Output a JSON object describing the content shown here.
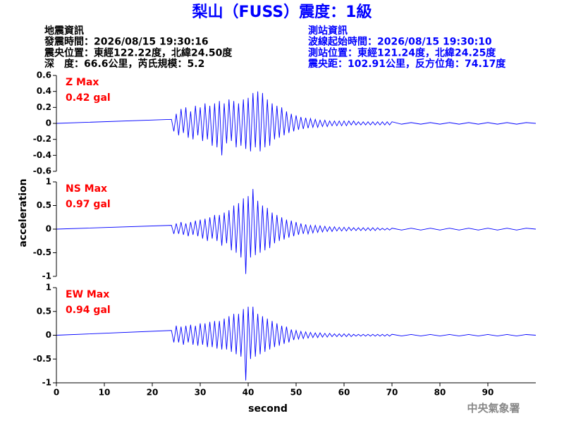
{
  "header": {
    "title": "梨山（FUSS）震度：1級",
    "left": [
      "地震資訊",
      "發震時間：2026/08/15 19:30:16",
      "震央位置：東經122.22度，北緯24.50度",
      "深　度：66.6公里，芮氏規模：5.2"
    ],
    "right": [
      "測站資訊",
      "波線起始時間：2026/08/15 19:30:10",
      "測站位置：東經121.24度，北緯24.25度",
      "震央距：102.91公里，反方位角：74.17度"
    ]
  },
  "ylabel": "acceleration",
  "credit": "中央氣象署",
  "chart_data": [
    {
      "type": "line",
      "annotations": [
        "Z Max",
        "0.42 gal"
      ],
      "color": "#0000ff",
      "xlim": [
        0,
        100
      ],
      "ylim": [
        -0.6,
        0.6
      ],
      "yticks": [
        -0.6,
        -0.4,
        -0.2,
        0,
        0.2,
        0.4,
        0.6
      ],
      "x": [
        0,
        24,
        24.5,
        25,
        25.5,
        26,
        26.5,
        27,
        27.5,
        28,
        28.5,
        29,
        29.5,
        30,
        30.5,
        31,
        31.5,
        32,
        32.5,
        33,
        33.5,
        34,
        34.5,
        35,
        35.5,
        36,
        36.5,
        37,
        37.5,
        38,
        38.5,
        39,
        39.5,
        40,
        40.5,
        41,
        41.5,
        42,
        42.5,
        43,
        43.5,
        44,
        44.5,
        45,
        45.5,
        46,
        46.5,
        47,
        47.5,
        48,
        48.5,
        49,
        49.5,
        50,
        50.5,
        51,
        51.5,
        52,
        52.5,
        53,
        53.5,
        54,
        54.5,
        55,
        55.5,
        56,
        56.5,
        57,
        57.5,
        58,
        58.5,
        59,
        59.5,
        60,
        60.5,
        61,
        61.5,
        62,
        62.5,
        63,
        63.5,
        64,
        64.5,
        65,
        65.5,
        66,
        66.5,
        67,
        67.5,
        68,
        68.5,
        69,
        69.5,
        70,
        72,
        74,
        76,
        78,
        80,
        82,
        84,
        86,
        88,
        90,
        92,
        94,
        96,
        98,
        100
      ],
      "values": [
        0,
        0.05,
        -0.1,
        0.12,
        -0.15,
        0.18,
        -0.12,
        0.2,
        -0.18,
        0.15,
        -0.2,
        0.22,
        -0.15,
        0.2,
        -0.22,
        0.25,
        -0.2,
        0.22,
        -0.28,
        0.25,
        -0.3,
        0.28,
        -0.4,
        0.25,
        -0.25,
        0.3,
        -0.22,
        0.28,
        -0.3,
        0.25,
        -0.28,
        0.3,
        -0.32,
        0.32,
        -0.35,
        0.38,
        -0.3,
        0.4,
        -0.35,
        0.38,
        -0.3,
        0.3,
        -0.28,
        0.25,
        -0.2,
        0.22,
        -0.18,
        0.2,
        -0.15,
        0.15,
        -0.12,
        0.12,
        -0.1,
        0.1,
        -0.08,
        0.08,
        -0.07,
        0.07,
        -0.06,
        0.06,
        -0.05,
        0.05,
        -0.05,
        0.04,
        -0.04,
        0.04,
        -0.04,
        0.03,
        -0.03,
        0.03,
        -0.03,
        0.03,
        -0.03,
        0.03,
        -0.03,
        0.03,
        -0.02,
        0.03,
        -0.02,
        0.02,
        -0.02,
        0.02,
        -0.02,
        0.02,
        -0.02,
        0.02,
        -0.02,
        0.02,
        -0.02,
        0.02,
        -0.02,
        0.02,
        -0.02,
        0.02,
        -0.01,
        0.01,
        -0.01,
        0.01,
        -0.01,
        0.01,
        -0.01,
        0.01,
        -0.01,
        0.01,
        -0.01,
        0.01,
        -0.01,
        0.01,
        0
      ]
    },
    {
      "type": "line",
      "annotations": [
        "NS Max",
        "0.97 gal"
      ],
      "color": "#0000ff",
      "xlim": [
        0,
        100
      ],
      "ylim": [
        -1,
        1
      ],
      "yticks": [
        -1,
        -0.5,
        0,
        0.5,
        1
      ],
      "x": [
        0,
        24,
        24.5,
        25,
        25.5,
        26,
        26.5,
        27,
        27.5,
        28,
        28.5,
        29,
        29.5,
        30,
        30.5,
        31,
        31.5,
        32,
        32.5,
        33,
        33.5,
        34,
        34.5,
        35,
        35.5,
        36,
        36.5,
        37,
        37.5,
        38,
        38.5,
        39,
        39.5,
        40,
        40.5,
        41,
        41.5,
        42,
        42.5,
        43,
        43.5,
        44,
        44.5,
        45,
        45.5,
        46,
        46.5,
        47,
        47.5,
        48,
        48.5,
        49,
        49.5,
        50,
        50.5,
        51,
        51.5,
        52,
        52.5,
        53,
        53.5,
        54,
        54.5,
        55,
        55.5,
        56,
        56.5,
        57,
        57.5,
        58,
        58.5,
        59,
        59.5,
        60,
        60.5,
        61,
        61.5,
        62,
        62.5,
        63,
        63.5,
        64,
        64.5,
        65,
        65.5,
        66,
        66.5,
        67,
        67.5,
        68,
        68.5,
        69,
        69.5,
        70,
        72,
        74,
        76,
        78,
        80,
        82,
        84,
        86,
        88,
        90,
        92,
        94,
        96,
        98,
        100
      ],
      "values": [
        0,
        0.08,
        -0.1,
        0.12,
        -0.1,
        0.15,
        -0.12,
        0.12,
        -0.15,
        0.15,
        -0.12,
        0.18,
        -0.15,
        0.2,
        -0.2,
        0.22,
        -0.25,
        0.25,
        -0.2,
        0.3,
        -0.25,
        0.3,
        -0.35,
        0.35,
        -0.3,
        0.4,
        -0.45,
        0.5,
        -0.5,
        0.55,
        -0.6,
        0.65,
        -0.95,
        0.7,
        -0.6,
        0.85,
        -0.55,
        0.6,
        -0.5,
        0.5,
        -0.45,
        0.45,
        -0.4,
        0.35,
        -0.3,
        0.3,
        -0.25,
        0.25,
        -0.22,
        0.2,
        -0.18,
        0.18,
        -0.15,
        0.15,
        -0.12,
        0.12,
        -0.1,
        0.1,
        -0.1,
        0.08,
        -0.08,
        0.08,
        -0.07,
        0.07,
        -0.06,
        0.06,
        -0.05,
        0.05,
        -0.05,
        0.05,
        -0.04,
        0.04,
        -0.04,
        0.04,
        -0.04,
        0.04,
        -0.03,
        0.03,
        -0.03,
        0.03,
        -0.03,
        0.03,
        -0.03,
        0.03,
        -0.03,
        0.03,
        -0.03,
        0.03,
        -0.02,
        0.02,
        -0.02,
        0.02,
        -0.02,
        0.02,
        -0.02,
        0.02,
        -0.02,
        0.02,
        -0.02,
        0.02,
        -0.02,
        0.02,
        -0.02,
        0.02,
        -0.02,
        0.02,
        -0.02,
        0.02,
        0
      ]
    },
    {
      "type": "line",
      "annotations": [
        "EW Max",
        "0.94 gal"
      ],
      "color": "#0000ff",
      "xlim": [
        0,
        100
      ],
      "ylim": [
        -1,
        1
      ],
      "yticks": [
        -1,
        -0.5,
        0,
        0.5,
        1
      ],
      "xticks": [
        0,
        10,
        20,
        30,
        40,
        50,
        60,
        70,
        80,
        90
      ],
      "xlabel": "second",
      "x": [
        0,
        24,
        24.5,
        25,
        25.5,
        26,
        26.5,
        27,
        27.5,
        28,
        28.5,
        29,
        29.5,
        30,
        30.5,
        31,
        31.5,
        32,
        32.5,
        33,
        33.5,
        34,
        34.5,
        35,
        35.5,
        36,
        36.5,
        37,
        37.5,
        38,
        38.5,
        39,
        39.5,
        40,
        40.5,
        41,
        41.5,
        42,
        42.5,
        43,
        43.5,
        44,
        44.5,
        45,
        45.5,
        46,
        46.5,
        47,
        47.5,
        48,
        48.5,
        49,
        49.5,
        50,
        50.5,
        51,
        51.5,
        52,
        52.5,
        53,
        53.5,
        54,
        54.5,
        55,
        55.5,
        56,
        56.5,
        57,
        57.5,
        58,
        58.5,
        59,
        59.5,
        60,
        60.5,
        61,
        61.5,
        62,
        62.5,
        63,
        63.5,
        64,
        64.5,
        65,
        65.5,
        66,
        66.5,
        67,
        67.5,
        68,
        68.5,
        69,
        69.5,
        70,
        72,
        74,
        76,
        78,
        80,
        82,
        84,
        86,
        88,
        90,
        92,
        94,
        96,
        98,
        100
      ],
      "values": [
        0,
        0.1,
        -0.15,
        0.2,
        -0.15,
        0.18,
        -0.2,
        0.2,
        -0.15,
        0.22,
        -0.2,
        0.2,
        -0.22,
        0.25,
        -0.2,
        0.25,
        -0.25,
        0.28,
        -0.25,
        0.3,
        -0.28,
        0.3,
        -0.3,
        0.35,
        -0.3,
        0.4,
        -0.35,
        0.45,
        -0.4,
        0.45,
        -0.45,
        0.55,
        -0.95,
        0.6,
        -0.5,
        0.6,
        -0.45,
        0.45,
        -0.4,
        0.4,
        -0.35,
        0.35,
        -0.3,
        0.3,
        -0.25,
        0.25,
        -0.22,
        0.2,
        -0.18,
        0.18,
        -0.15,
        0.12,
        -0.1,
        0.1,
        -0.08,
        0.08,
        -0.07,
        0.07,
        -0.06,
        0.06,
        -0.05,
        0.05,
        -0.05,
        0.05,
        -0.04,
        0.04,
        -0.04,
        0.04,
        -0.03,
        0.03,
        -0.03,
        0.03,
        -0.03,
        0.03,
        -0.03,
        0.03,
        -0.03,
        0.02,
        -0.02,
        0.02,
        -0.02,
        0.02,
        -0.02,
        0.02,
        -0.02,
        0.02,
        -0.02,
        0.02,
        -0.02,
        0.02,
        -0.02,
        0.02,
        -0.02,
        0.02,
        -0.015,
        0.015,
        -0.015,
        0.015,
        -0.015,
        0.015,
        -0.015,
        0.015,
        -0.015,
        0.015,
        -0.015,
        0.015,
        -0.015,
        0.015,
        0
      ]
    }
  ]
}
